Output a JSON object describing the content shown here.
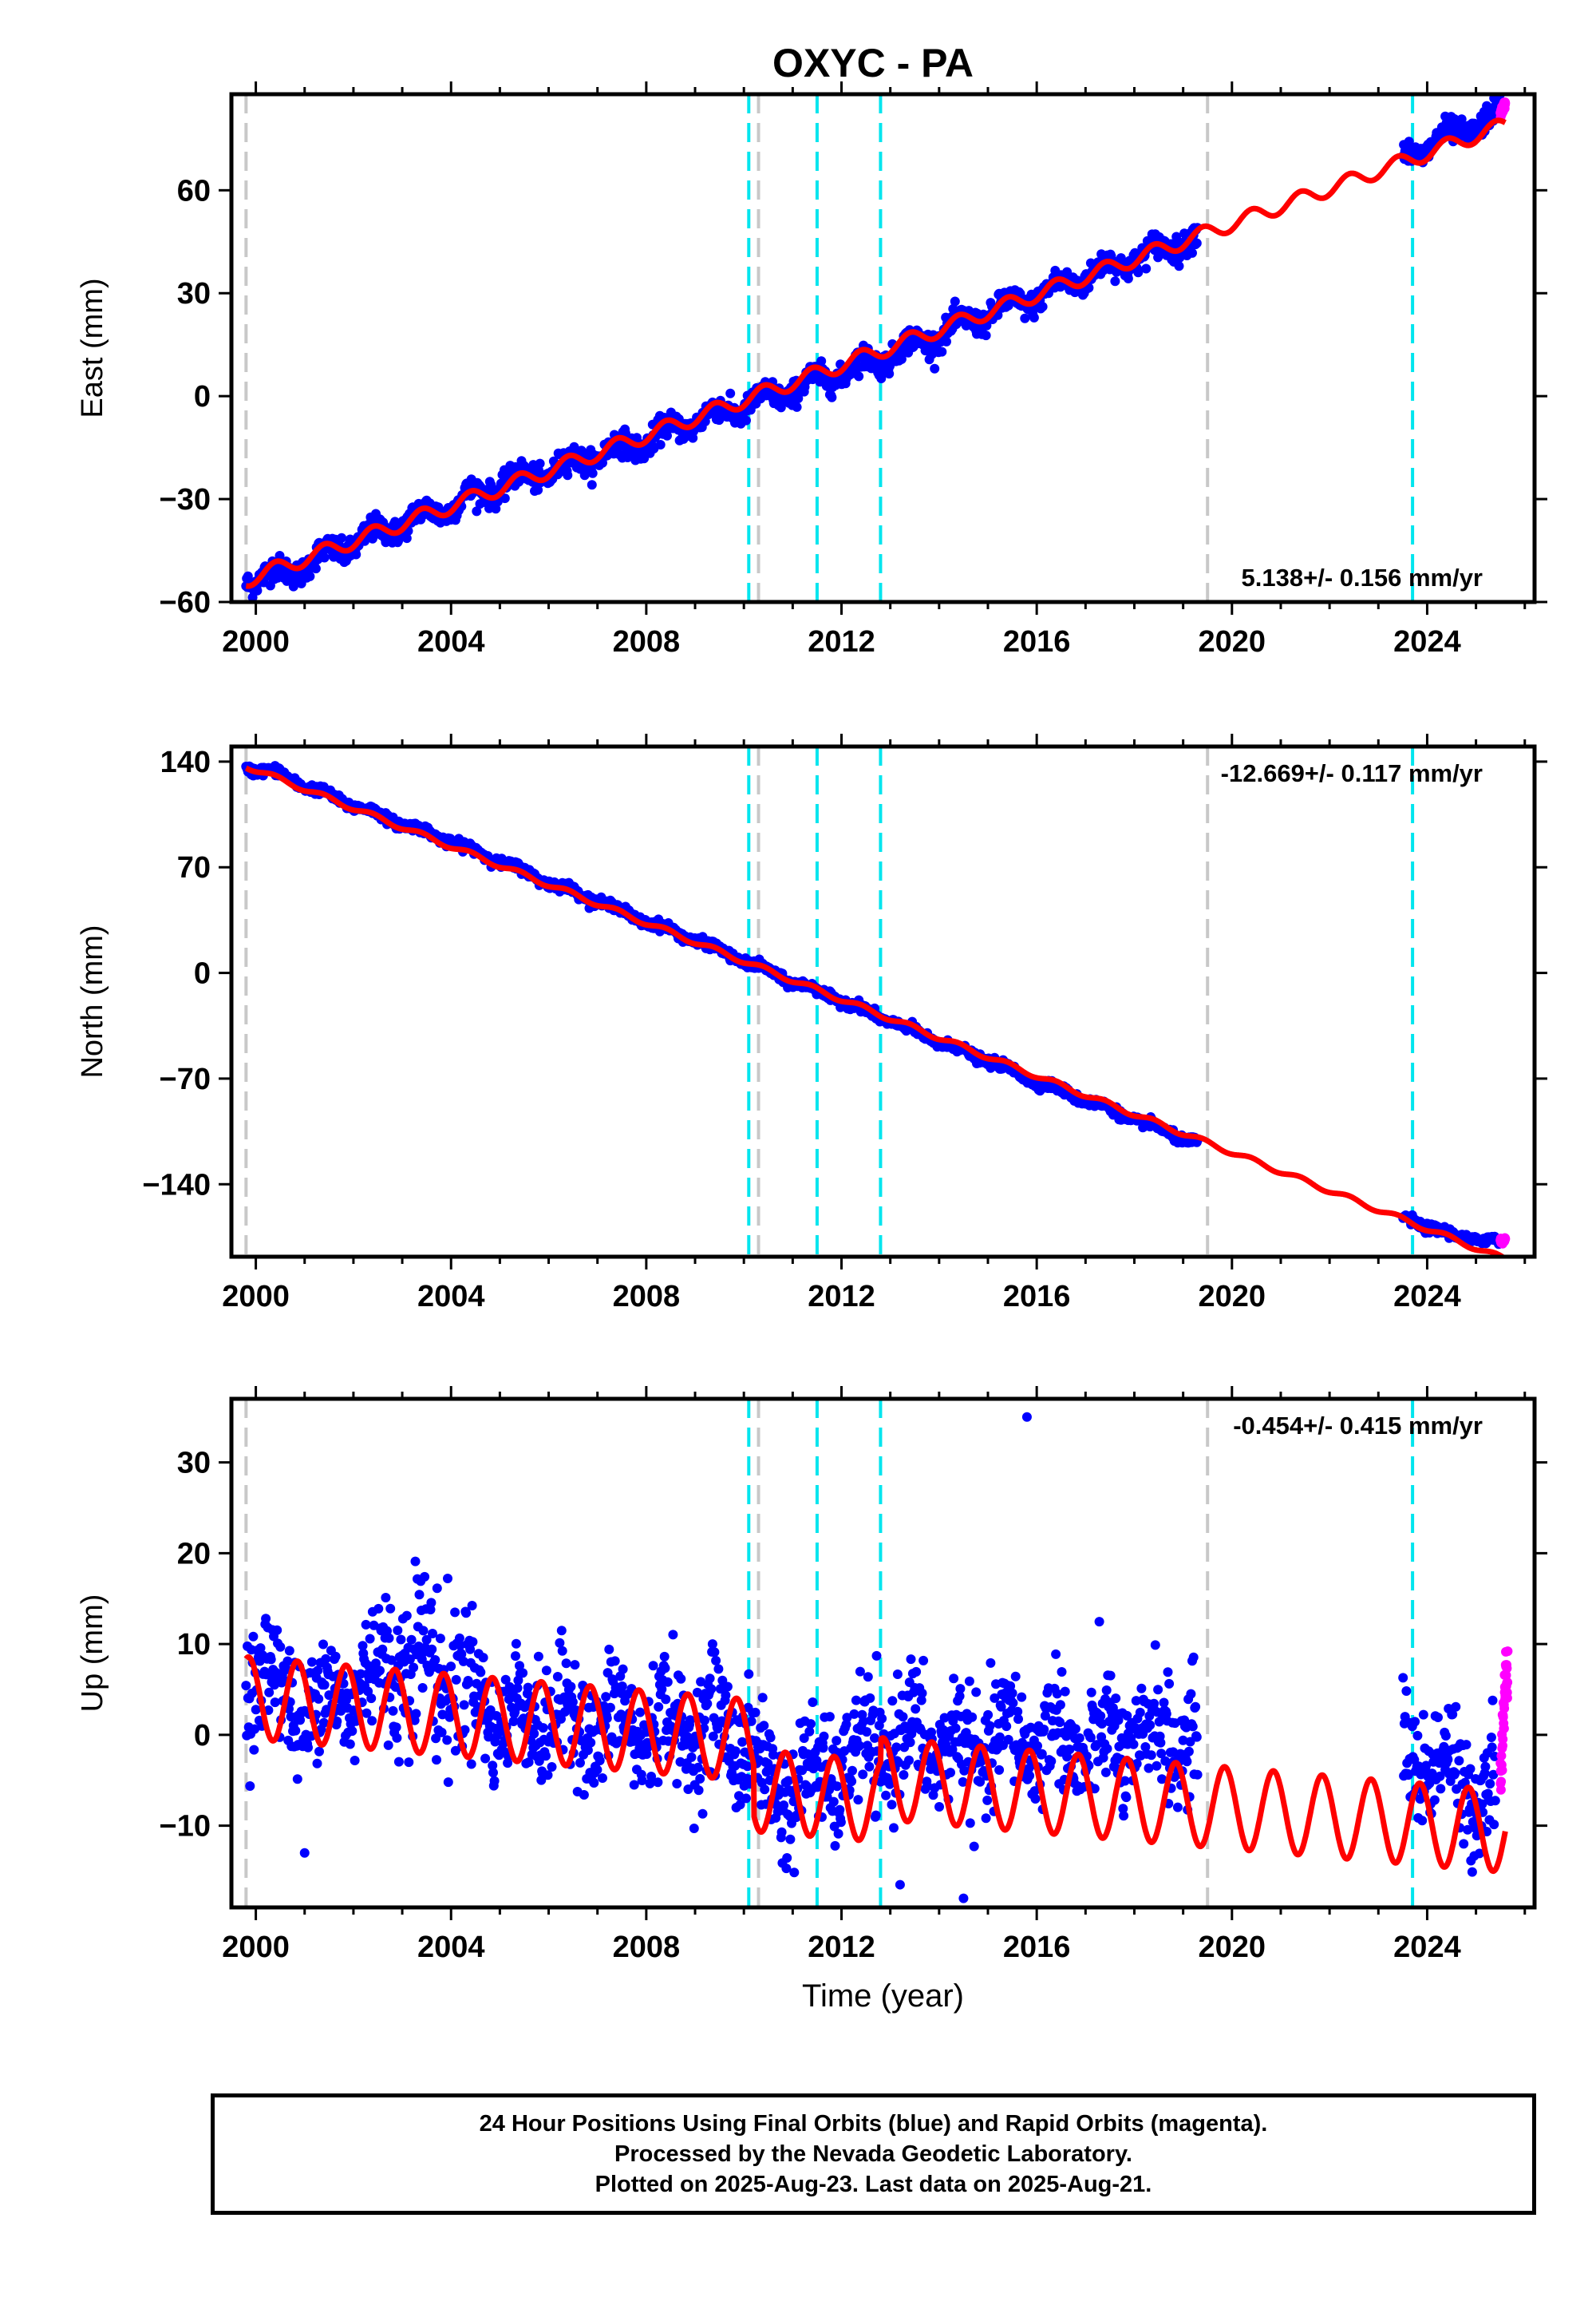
{
  "title": "OXYC - PA",
  "colors": {
    "final_orbits": "#0000ff",
    "rapid_orbits": "#ff00ff",
    "model": "#ff0000",
    "offset_equipment": "#00e5ee",
    "offset_other": "#c8c8c8",
    "frame": "#000000"
  },
  "chart_data": [
    {
      "type": "scatter",
      "panel": "east",
      "ylabel": "East (mm)",
      "xlabel": "",
      "xlim": [
        1999.5,
        2026.2
      ],
      "ylim": [
        -60,
        88
      ],
      "xticks": [
        2000,
        2004,
        2008,
        2012,
        2016,
        2020,
        2024
      ],
      "yticks": [
        -60,
        -30,
        0,
        30,
        60
      ],
      "rate_label": "5.138+/- 0.156 mm/yr",
      "rate_label_position": "bottom-right",
      "data_gap": [
        2019.3,
        2023.5
      ],
      "series": [
        {
          "color": "blue",
          "x": [
            1999.8,
            2000.5,
            2001.0,
            2002.0,
            2003.0,
            2004.0,
            2005.0,
            2006.0,
            2007.0,
            2008.0,
            2009.0,
            2010.0,
            2011.0,
            2012.0,
            2013.0,
            2014.0,
            2015.0,
            2016.0,
            2017.0,
            2018.0,
            2019.2,
            2023.7,
            2024.5,
            2025.5
          ],
          "y": [
            -53,
            -52,
            -49,
            -43,
            -37,
            -32,
            -26,
            -22,
            -17,
            -13,
            -7,
            -3,
            2,
            7,
            12,
            18,
            24,
            29,
            35,
            40,
            46,
            71,
            76,
            82
          ]
        },
        {
          "color": "magenta",
          "x": [
            2025.5,
            2025.55,
            2025.6
          ],
          "y": [
            82,
            84,
            85
          ]
        }
      ],
      "model": {
        "color": "red",
        "rate": 5.138,
        "anchor_x": 2000.0,
        "anchor_y": -52.5,
        "annual_amplitude": 2.2
      }
    },
    {
      "type": "scatter",
      "panel": "north",
      "ylabel": "North (mm)",
      "xlabel": "",
      "xlim": [
        1999.5,
        2026.2
      ],
      "ylim": [
        -188,
        150
      ],
      "xticks": [
        2000,
        2004,
        2008,
        2012,
        2016,
        2020,
        2024
      ],
      "yticks": [
        -140,
        -70,
        0,
        70,
        140
      ],
      "rate_label": "-12.669+/- 0.117 mm/yr",
      "rate_label_position": "top-right",
      "data_gap": [
        2019.3,
        2023.5
      ],
      "series": [
        {
          "color": "blue",
          "x": [
            1999.8,
            2000.5,
            2001.0,
            2002.0,
            2003.0,
            2004.0,
            2005.0,
            2006.0,
            2007.0,
            2008.0,
            2009.0,
            2010.0,
            2011.0,
            2012.0,
            2013.0,
            2014.0,
            2015.0,
            2016.0,
            2017.0,
            2018.0,
            2019.2,
            2023.7,
            2024.5,
            2025.5
          ],
          "y": [
            136,
            132,
            124,
            111,
            99,
            87,
            74,
            60,
            48,
            34,
            22,
            8,
            -6,
            -18,
            -32,
            -46,
            -58,
            -72,
            -84,
            -97,
            -112,
            -164,
            -174,
            -178
          ]
        },
        {
          "color": "magenta",
          "x": [
            2025.5,
            2025.55,
            2025.6
          ],
          "y": [
            -177,
            -178,
            -176
          ]
        }
      ],
      "model": {
        "color": "red",
        "rate": -12.669,
        "anchor_x": 2000.0,
        "anchor_y": 134.5,
        "annual_amplitude": 1.6
      }
    },
    {
      "type": "scatter",
      "panel": "up",
      "ylabel": "Up (mm)",
      "xlabel": "Time (year)",
      "xlim": [
        1999.5,
        2026.2
      ],
      "ylim": [
        -19,
        37
      ],
      "xticks": [
        2000,
        2004,
        2008,
        2012,
        2016,
        2020,
        2024
      ],
      "yticks": [
        -10,
        0,
        10,
        20,
        30
      ],
      "rate_label": "-0.454+/- 0.415 mm/yr",
      "rate_label_position": "top-right",
      "data_gap": [
        2019.3,
        2023.5
      ],
      "series": [
        {
          "color": "blue",
          "x": [
            1999.8,
            2001.0,
            2002.0,
            2003.0,
            2004.0,
            2005.0,
            2006.0,
            2007.0,
            2008.0,
            2009.0,
            2010.0,
            2010.5,
            2011.5,
            2012.5,
            2013.5,
            2014.5,
            2015.8,
            2016.8,
            2017.8,
            2018.8,
            2023.9,
            2024.6,
            2025.4
          ],
          "y": [
            8,
            3,
            5,
            9,
            7,
            2,
            2,
            1,
            1,
            1,
            0,
            -6,
            -5,
            -2,
            0,
            -2,
            0,
            -1,
            -1,
            0,
            -2,
            -5,
            -6
          ],
          "outliers": [
            [
              2015.8,
              35
            ],
            [
              2001.0,
              -13
            ],
            [
              2013.2,
              -16.5
            ],
            [
              2014.5,
              -18
            ]
          ]
        },
        {
          "color": "magenta",
          "x": [
            2025.5,
            2025.55,
            2025.6,
            2025.65
          ],
          "y": [
            -5,
            0,
            5,
            8.5
          ]
        }
      ],
      "model": {
        "color": "red",
        "rate": -0.454,
        "annual_amplitude": 4.5,
        "segments": [
          {
            "from": 1999.8,
            "to": 2010.2,
            "base": 4.0
          },
          {
            "from": 2010.2,
            "to": 2012.8,
            "base": -1.5
          },
          {
            "from": 2012.8,
            "to": 2026.0,
            "base": 1.0
          }
        ]
      }
    }
  ],
  "offsets": {
    "equipment_change": [
      2010.1,
      2011.5,
      2012.8,
      2023.7
    ],
    "other": [
      1999.8,
      2010.3,
      2019.5
    ]
  },
  "footer": {
    "line1": "24 Hour Positions Using Final Orbits (blue) and Rapid Orbits (magenta).",
    "line2": "Processed by the Nevada Geodetic Laboratory.",
    "line3": "Plotted on 2025-Aug-23. Last data on 2025-Aug-21."
  }
}
